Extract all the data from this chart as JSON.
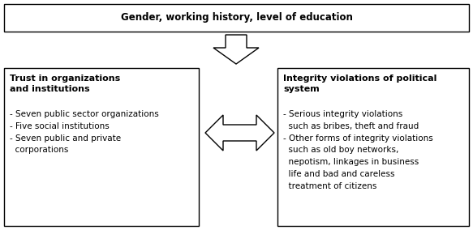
{
  "title": "Gender, working history, level of education",
  "title_fontsize": 9.0,
  "left_box_title": "Trust in organizations\nand institutions",
  "left_box_items": "- Seven public sector organizations\n- Five social institutions\n- Seven public and private\n  corporations",
  "right_box_title": "Integrity violations of political\nsystem",
  "right_box_items": "- Serious integrity violations\n  such as bribes, theft and fraud\n- Other forms of integrity violations\n  such as old boy networks,\n  nepotism, linkages in business\n  life and bad and careless\n  treatment of citizens",
  "bg_color": "#ffffff",
  "box_edge_color": "#000000",
  "text_color": "#000000",
  "title_fs": 8.5,
  "body_fs": 7.5,
  "bold_fs": 8.0,
  "lw": 1.0
}
